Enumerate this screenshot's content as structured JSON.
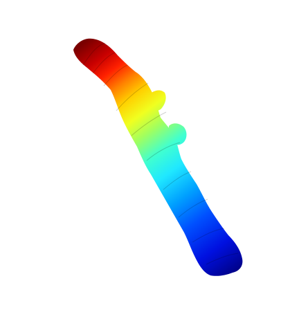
{
  "image": {
    "subject": "colormap-shape",
    "background_color": "#ffffff",
    "colormap": "jet",
    "palette": [
      "#7a0000",
      "#c80000",
      "#ff2000",
      "#ff8000",
      "#ffd000",
      "#f0ff20",
      "#a0ff60",
      "#40ffd0",
      "#20e8ff",
      "#00a0ff",
      "#0050ff",
      "#0010e0",
      "#000080"
    ]
  }
}
